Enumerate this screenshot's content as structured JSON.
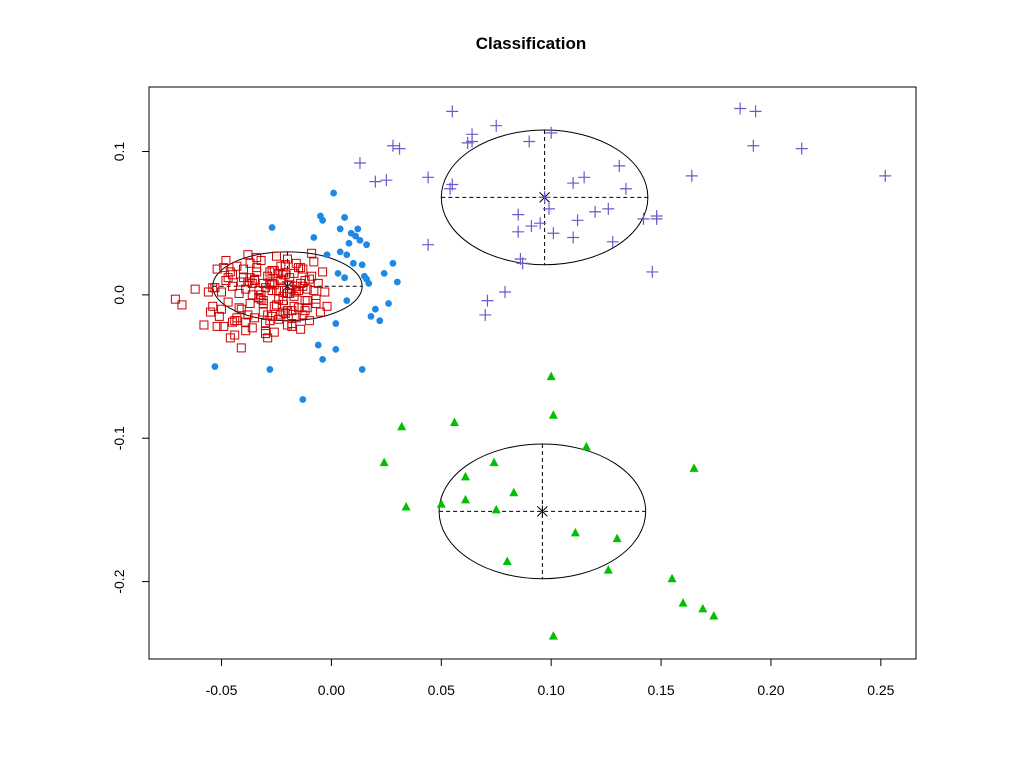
{
  "chart_data": {
    "type": "scatter",
    "title": "Classification",
    "xlabel": "",
    "ylabel": "",
    "xlim": [
      -0.083,
      0.266
    ],
    "ylim": [
      -0.254,
      0.145
    ],
    "xticks": [
      -0.05,
      0.0,
      0.05,
      0.1,
      0.15,
      0.2,
      0.25
    ],
    "xtick_labels": [
      "-0.05",
      "0.00",
      "0.05",
      "0.10",
      "0.15",
      "0.20",
      "0.25"
    ],
    "yticks": [
      -0.2,
      -0.1,
      0.0,
      0.1
    ],
    "ytick_labels": [
      "-0.2",
      "-0.1",
      "0.0",
      "0.1"
    ],
    "grid": false,
    "legend": "none",
    "series": [
      {
        "marker": "open-square",
        "color": "#cc0000",
        "x": [
          -0.071,
          -0.068,
          -0.062,
          -0.058,
          -0.056,
          -0.055,
          -0.054,
          -0.053,
          -0.052,
          -0.051,
          -0.05,
          -0.049,
          -0.048,
          -0.047,
          -0.046,
          -0.045,
          -0.044,
          -0.043,
          -0.042,
          -0.041,
          -0.04,
          -0.039,
          -0.038,
          -0.037,
          -0.036,
          -0.035,
          -0.034,
          -0.033,
          -0.032,
          -0.031,
          -0.03,
          -0.029,
          -0.028,
          -0.027,
          -0.026,
          -0.025,
          -0.024,
          -0.023,
          -0.022,
          -0.021,
          -0.02,
          -0.019,
          -0.018,
          -0.017,
          -0.016,
          -0.015,
          -0.014,
          -0.013,
          -0.012,
          -0.011,
          -0.01,
          -0.009,
          -0.008,
          -0.007,
          -0.006,
          -0.005,
          -0.004,
          -0.003,
          -0.002,
          -0.045,
          -0.042,
          -0.038,
          -0.035,
          -0.033,
          -0.03,
          -0.028,
          -0.026,
          -0.024,
          -0.022,
          -0.02,
          -0.018,
          -0.016,
          -0.014,
          -0.012,
          -0.04,
          -0.036,
          -0.032,
          -0.029,
          -0.025,
          -0.021,
          -0.017,
          -0.013,
          -0.05,
          -0.047,
          -0.043,
          -0.039,
          -0.034,
          -0.031,
          -0.027,
          -0.023,
          -0.019,
          -0.015,
          -0.011,
          -0.008,
          -0.044,
          -0.037,
          -0.03,
          -0.026,
          -0.022,
          -0.018,
          -0.035,
          -0.028,
          -0.024,
          -0.02,
          -0.052,
          -0.048,
          -0.041,
          -0.033,
          -0.027,
          -0.021,
          -0.016,
          -0.01,
          -0.007,
          -0.046,
          -0.039,
          -0.031,
          -0.025,
          -0.019,
          -0.014,
          -0.009,
          -0.036,
          -0.029,
          -0.023,
          -0.017,
          -0.012,
          -0.054,
          -0.049,
          -0.043,
          -0.038,
          -0.032,
          -0.026,
          -0.021,
          -0.015,
          -0.045,
          -0.034,
          -0.028,
          -0.022,
          -0.018,
          -0.013,
          -0.041,
          -0.037,
          -0.03,
          -0.024,
          -0.02,
          -0.016,
          -0.011,
          -0.031,
          -0.027,
          -0.023
        ],
        "y": [
          -0.003,
          -0.007,
          0.004,
          -0.021,
          0.002,
          -0.012,
          -0.008,
          0.005,
          0.018,
          -0.015,
          0.002,
          -0.022,
          0.01,
          -0.005,
          -0.03,
          0.014,
          -0.018,
          0.02,
          0.001,
          -0.01,
          0.012,
          -0.025,
          0.028,
          -0.006,
          0.008,
          -0.016,
          0.019,
          -0.002,
          0.024,
          -0.012,
          0.005,
          -0.03,
          0.016,
          0.003,
          -0.008,
          0.027,
          -0.017,
          0.011,
          -0.004,
          0.021,
          -0.011,
          0.007,
          -0.022,
          0.015,
          0.002,
          -0.009,
          0.019,
          -0.014,
          0.01,
          0.004,
          -0.018,
          0.013,
          0.023,
          -0.006,
          0.008,
          -0.012,
          0.016,
          0.002,
          -0.008,
          0.006,
          -0.009,
          -0.014,
          0.011,
          0.003,
          -0.02,
          0.009,
          0.017,
          -0.003,
          -0.012,
          0.025,
          0.004,
          -0.016,
          0.008,
          -0.004,
          0.018,
          -0.023,
          0.0,
          0.013,
          -0.007,
          0.021,
          -0.001,
          0.006,
          -0.01,
          0.012,
          -0.018,
          0.004,
          0.016,
          -0.004,
          0.008,
          -0.014,
          0.001,
          0.019,
          -0.009,
          0.003,
          -0.028,
          0.022,
          -0.025,
          0.007,
          0.014,
          -0.02,
          0.01,
          -0.018,
          0.015,
          0.001,
          -0.022,
          0.024,
          0.009,
          -0.002,
          0.017,
          -0.013,
          0.006,
          0.011,
          -0.003,
          0.016,
          -0.019,
          -0.006,
          0.003,
          0.012,
          -0.024,
          0.029,
          0.0,
          -0.014,
          0.02,
          -0.008,
          -0.011,
          0.005,
          0.019,
          -0.016,
          0.009,
          -0.003,
          -0.026,
          0.014,
          0.003,
          -0.019,
          0.026,
          0.007,
          -0.001,
          -0.011,
          0.018,
          -0.037,
          0.012,
          -0.027,
          0.003,
          -0.021,
          0.022,
          -0.004,
          0.008,
          -0.015,
          0.01
        ]
      },
      {
        "marker": "filled-circle",
        "color": "#1e88e5",
        "x": [
          -0.053,
          -0.027,
          -0.028,
          -0.013,
          -0.004,
          -0.005,
          -0.004,
          0.001,
          0.002,
          0.004,
          0.006,
          0.007,
          0.008,
          0.009,
          0.011,
          0.012,
          0.013,
          0.014,
          0.015,
          0.016,
          0.017,
          0.018,
          0.02,
          0.022,
          0.024,
          0.026,
          0.028,
          0.03,
          0.014,
          0.016,
          0.01,
          0.006,
          0.003,
          -0.002,
          0.002,
          0.007,
          -0.006,
          0.004,
          -0.008
        ],
        "y": [
          -0.05,
          0.047,
          -0.052,
          -0.073,
          -0.045,
          0.055,
          0.052,
          0.071,
          -0.038,
          0.046,
          0.054,
          0.028,
          0.036,
          0.043,
          0.041,
          0.046,
          0.038,
          0.021,
          0.013,
          0.035,
          0.008,
          -0.015,
          -0.01,
          -0.018,
          0.015,
          -0.006,
          0.022,
          0.009,
          -0.052,
          0.011,
          0.022,
          0.012,
          0.015,
          0.028,
          -0.02,
          -0.004,
          -0.035,
          0.03,
          0.04
        ]
      },
      {
        "marker": "plus",
        "color": "#6a5acd",
        "x": [
          0.055,
          0.013,
          0.02,
          0.025,
          0.028,
          0.031,
          0.044,
          0.044,
          0.054,
          0.055,
          0.062,
          0.064,
          0.064,
          0.075,
          0.079,
          0.07,
          0.071,
          0.085,
          0.085,
          0.086,
          0.087,
          0.09,
          0.091,
          0.095,
          0.097,
          0.099,
          0.1,
          0.101,
          0.11,
          0.11,
          0.112,
          0.115,
          0.12,
          0.126,
          0.131,
          0.134,
          0.142,
          0.148,
          0.148,
          0.164,
          0.146,
          0.128,
          0.186,
          0.193,
          0.192,
          0.214,
          0.252
        ],
        "y": [
          0.128,
          0.092,
          0.079,
          0.08,
          0.104,
          0.102,
          0.082,
          0.035,
          0.074,
          0.077,
          0.106,
          0.107,
          0.112,
          0.118,
          0.002,
          -0.014,
          -0.004,
          0.056,
          0.044,
          0.025,
          0.022,
          0.107,
          0.048,
          0.05,
          0.068,
          0.06,
          0.113,
          0.043,
          0.078,
          0.04,
          0.052,
          0.082,
          0.058,
          0.06,
          0.09,
          0.074,
          0.053,
          0.055,
          0.053,
          0.083,
          0.016,
          0.037,
          0.13,
          0.128,
          0.104,
          0.102,
          0.083
        ]
      },
      {
        "marker": "filled-triangle",
        "color": "#00c000",
        "x": [
          0.024,
          0.032,
          0.034,
          0.05,
          0.056,
          0.061,
          0.061,
          0.074,
          0.075,
          0.08,
          0.083,
          0.1,
          0.101,
          0.101,
          0.111,
          0.116,
          0.126,
          0.13,
          0.155,
          0.16,
          0.165,
          0.169,
          0.174
        ],
        "y": [
          -0.117,
          -0.092,
          -0.148,
          -0.146,
          -0.089,
          -0.127,
          -0.143,
          -0.117,
          -0.15,
          -0.186,
          -0.138,
          -0.057,
          -0.084,
          -0.238,
          -0.166,
          -0.106,
          -0.192,
          -0.17,
          -0.198,
          -0.215,
          -0.121,
          -0.219,
          -0.224
        ]
      }
    ],
    "ellipses": [
      {
        "center": [
          -0.02,
          0.006
        ],
        "rx": 0.034,
        "ry": 0.024,
        "color": "#000000"
      },
      {
        "center": [
          0.097,
          0.068
        ],
        "rx": 0.047,
        "ry": 0.047,
        "color": "#000000"
      },
      {
        "center": [
          0.096,
          -0.151
        ],
        "rx": 0.047,
        "ry": 0.047,
        "color": "#000000"
      }
    ]
  }
}
